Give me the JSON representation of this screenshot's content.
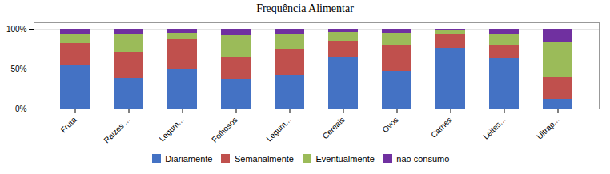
{
  "chart_data": {
    "type": "bar",
    "title": "Frequência Alimentar",
    "categories": [
      "Fruta",
      "Raizes ...",
      "Legum...",
      "Folhosos",
      "Legum...",
      "Cereais",
      "Ovos",
      "Carnes",
      "Leites...",
      "Ultrap..."
    ],
    "series": [
      {
        "name": "Diariamente",
        "color": "#4472C4",
        "values": [
          55,
          38,
          50,
          37,
          42,
          65,
          47,
          76,
          63,
          12
        ]
      },
      {
        "name": "Semanalmente",
        "color": "#C0504D",
        "values": [
          27,
          33,
          37,
          27,
          32,
          20,
          33,
          17,
          17,
          28
        ]
      },
      {
        "name": "Eventualmente",
        "color": "#9BBB59",
        "values": [
          12,
          22,
          8,
          28,
          20,
          11,
          15,
          6,
          13,
          43
        ]
      },
      {
        "name": "não consumo",
        "color": "#7030A0",
        "values": [
          6,
          7,
          5,
          8,
          6,
          4,
          5,
          1,
          7,
          17
        ]
      }
    ],
    "stacked": true,
    "ylim": [
      0,
      108
    ],
    "yticks": [
      {
        "value": 0,
        "label": "0%"
      },
      {
        "value": 50,
        "label": "50%"
      },
      {
        "value": 100,
        "label": "100%"
      }
    ],
    "grid": true,
    "legend": "bottom"
  }
}
